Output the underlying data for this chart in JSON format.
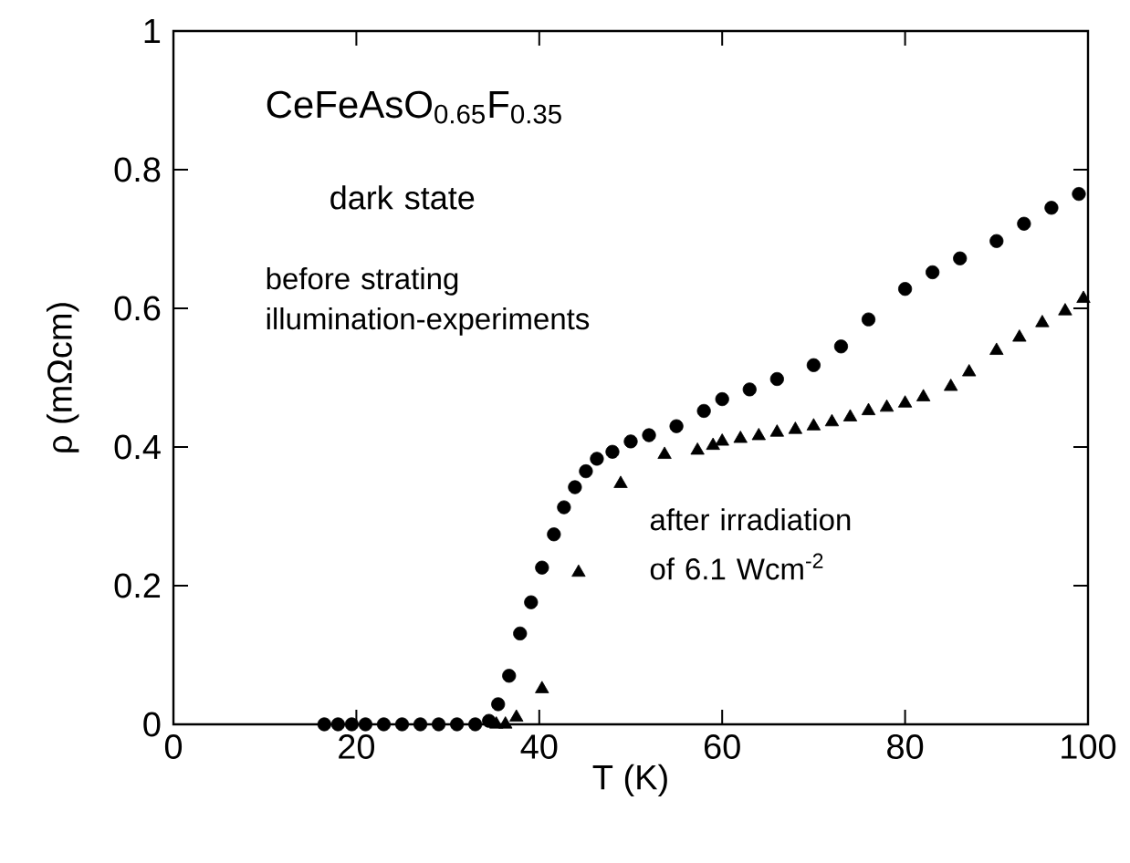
{
  "chart_data": {
    "type": "scatter",
    "xlabel": "T (K)",
    "ylabel": "ρ (mΩcm)",
    "annotations": [
      "CeFeAsO$_{0.65}$F$_{0.35}$",
      "dark state",
      "before strating illumination-experiments",
      "after irradiation of 6.1 Wcm$^{-2}$"
    ],
    "xlim": [
      0,
      100
    ],
    "ylim": [
      0,
      1
    ],
    "xticks": [
      0,
      20,
      40,
      60,
      80,
      100
    ],
    "yticks": [
      0,
      0.2,
      0.4,
      0.6,
      0.8,
      1
    ],
    "grid": false,
    "series": [
      {
        "color": "#000000",
        "marker": "circle",
        "x": [
          16.5,
          18,
          19.5,
          21,
          23,
          25,
          27,
          29,
          31,
          33,
          34.5,
          35.5,
          36.7,
          37.9,
          39.1,
          40.3,
          41.6,
          42.7,
          43.9,
          45.1,
          46.3,
          48,
          50,
          52,
          55,
          58,
          60,
          63,
          66,
          70,
          73,
          76,
          80,
          83,
          86,
          90,
          93,
          96,
          99
        ],
        "values": [
          0,
          0,
          0,
          0,
          0,
          0,
          0,
          0,
          0,
          0,
          0.005,
          0.029,
          0.07,
          0.131,
          0.176,
          0.226,
          0.274,
          0.313,
          0.342,
          0.365,
          0.383,
          0.393,
          0.408,
          0.417,
          0.43,
          0.452,
          0.469,
          0.483,
          0.498,
          0.518,
          0.545,
          0.584,
          0.628,
          0.652,
          0.672,
          0.697,
          0.722,
          0.745,
          0.765
        ]
      },
      {
        "color": "#000000",
        "marker": "triangle",
        "x": [
          35.3,
          36.3,
          37.5,
          40.3,
          44.3,
          48.9,
          53.7,
          57.3,
          59,
          60,
          62,
          64,
          66,
          68,
          70,
          72,
          74,
          76,
          78,
          80,
          82,
          85,
          87,
          90,
          92.5,
          95,
          97.5,
          99.5
        ],
        "values": [
          0,
          0,
          0.01,
          0.051,
          0.219,
          0.347,
          0.389,
          0.395,
          0.402,
          0.408,
          0.412,
          0.416,
          0.421,
          0.425,
          0.43,
          0.436,
          0.443,
          0.452,
          0.457,
          0.463,
          0.472,
          0.487,
          0.508,
          0.539,
          0.558,
          0.579,
          0.596,
          0.614
        ]
      }
    ]
  }
}
